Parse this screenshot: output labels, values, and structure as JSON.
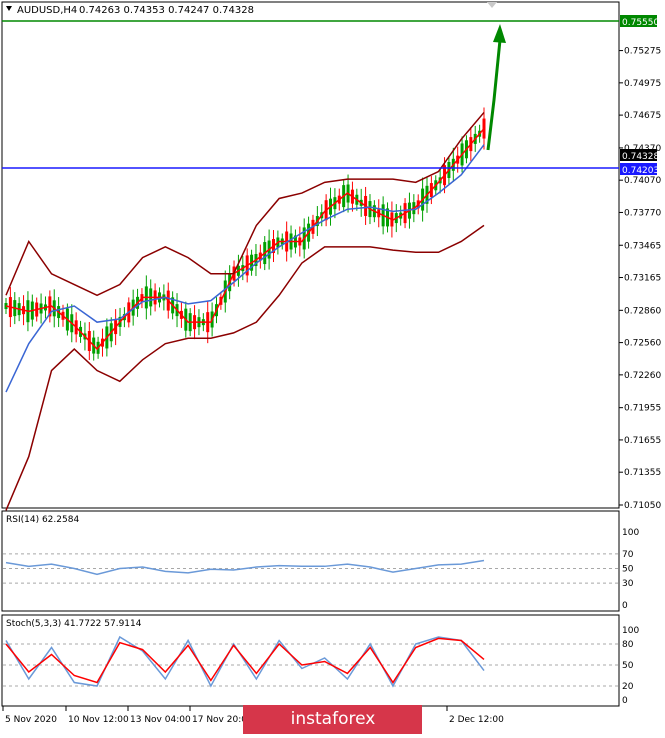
{
  "window": {
    "title": "AUDUSD,H4",
    "ohlc": "0.74263 0.74353 0.74247 0.74328"
  },
  "watermark": "instaforex",
  "colors": {
    "bull": "#00a000",
    "bear": "#ff0000",
    "bands": "#8b0000",
    "fast_ma": "#ff0000",
    "slow_ma": "#3a66d4",
    "rsi_line": "#6a99d8",
    "stoch_main": "#6a99d8",
    "stoch_signal": "#ff0000",
    "level_blue": "#1a1aff",
    "level_green": "#008800",
    "arrow": "#008800",
    "watermark_bg": "#d6364a"
  },
  "chart_data": [
    {
      "type": "candlestick",
      "title": "AUDUSD,H4",
      "y_ticks": [
        "0.75275",
        "0.74975",
        "0.74675",
        "0.74370",
        "0.74070",
        "0.73770",
        "0.73465",
        "0.73165",
        "0.72860",
        "0.72560",
        "0.72260",
        "0.71955",
        "0.71655",
        "0.71355",
        "0.71050"
      ],
      "ylim": [
        0.7105,
        0.7555
      ],
      "x_ticks": [
        "5 Nov 2020",
        "10 Nov 12:00",
        "13 Nov 04:00",
        "17 Nov 20:00",
        "2 Dec 12:00"
      ],
      "price_labels": [
        {
          "value": "0.75550",
          "kind": "level",
          "color": "#008800"
        },
        {
          "value": "0.74328",
          "kind": "last",
          "color": "#000000"
        },
        {
          "value": "0.74203",
          "kind": "level",
          "color": "#1a1aff"
        }
      ],
      "annotation": "arrow up toward 0.75550",
      "series": [
        {
          "role": "fast moving average",
          "values": [
            0.729,
            0.7285,
            0.729,
            0.7272,
            0.725,
            0.7275,
            0.7298,
            0.7298,
            0.7275,
            0.7275,
            0.732,
            0.7333,
            0.735,
            0.735,
            0.7378,
            0.7395,
            0.738,
            0.737,
            0.7382,
            0.7405,
            0.743,
            0.7455
          ]
        },
        {
          "role": "slow moving average",
          "values": [
            0.721,
            0.7255,
            0.7285,
            0.729,
            0.7275,
            0.7278,
            0.7294,
            0.7298,
            0.7292,
            0.7295,
            0.7312,
            0.733,
            0.7345,
            0.7358,
            0.737,
            0.738,
            0.7382,
            0.7378,
            0.738,
            0.7395,
            0.7412,
            0.744
          ]
        },
        {
          "role": "bollinger upper",
          "values": [
            0.73,
            0.735,
            0.732,
            0.731,
            0.73,
            0.731,
            0.7335,
            0.7345,
            0.7335,
            0.732,
            0.732,
            0.7365,
            0.739,
            0.7395,
            0.7405,
            0.7408,
            0.7408,
            0.7408,
            0.7405,
            0.7415,
            0.7445,
            0.747
          ]
        },
        {
          "role": "bollinger lower",
          "values": [
            0.71,
            0.715,
            0.723,
            0.725,
            0.723,
            0.722,
            0.724,
            0.7255,
            0.726,
            0.726,
            0.7265,
            0.7275,
            0.73,
            0.733,
            0.7345,
            0.7345,
            0.7345,
            0.7342,
            0.734,
            0.734,
            0.735,
            0.7365
          ]
        }
      ]
    },
    {
      "type": "line",
      "title": "RSI(14) 62.2584",
      "y_ticks": [
        "100",
        "70",
        "50",
        "30",
        "0"
      ],
      "ylim": [
        0,
        100
      ],
      "series": [
        {
          "role": "RSI",
          "values": [
            58,
            53,
            56,
            50,
            42,
            50,
            52,
            46,
            44,
            49,
            48,
            52,
            54,
            53,
            53,
            56,
            52,
            45,
            50,
            55,
            56,
            61
          ]
        }
      ]
    },
    {
      "type": "line",
      "title": "Stoch(5,3,3) 41.7722 57.9114",
      "y_ticks": [
        "100",
        "80",
        "50",
        "20",
        "0"
      ],
      "ylim": [
        0,
        100
      ],
      "series": [
        {
          "role": "%K",
          "values": [
            85,
            30,
            75,
            25,
            20,
            90,
            70,
            30,
            85,
            20,
            80,
            30,
            85,
            45,
            60,
            30,
            80,
            20,
            80,
            90,
            85,
            42
          ]
        },
        {
          "role": "%D",
          "values": [
            80,
            40,
            65,
            35,
            25,
            82,
            72,
            40,
            78,
            28,
            78,
            38,
            80,
            50,
            55,
            38,
            75,
            25,
            75,
            88,
            85,
            58
          ]
        }
      ]
    }
  ]
}
